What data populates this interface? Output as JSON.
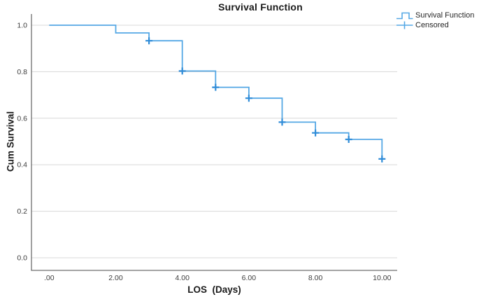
{
  "title": "Survival Function",
  "legend": {
    "position": "top-right",
    "items": [
      {
        "label": "Survival Function",
        "glyph": "step-line"
      },
      {
        "label": "Censored",
        "glyph": "plus-marker"
      }
    ]
  },
  "chart_data": {
    "type": "line",
    "subtype": "kaplan-meier-step",
    "title": "Survival Function",
    "xlabel": "LOS  (Days)",
    "ylabel": "Cum Survival",
    "xlim": [
      -0.55,
      10.45
    ],
    "ylim": [
      0,
      1.0
    ],
    "grid": "horizontal-only",
    "legend_position": "top-right-outside",
    "x_ticks": {
      "values": [
        0,
        2,
        4,
        6,
        8,
        10
      ],
      "labels": [
        ".00",
        "2.00",
        "4.00",
        "6.00",
        "8.00",
        "10.00"
      ]
    },
    "y_ticks": {
      "values": [
        0.0,
        0.2,
        0.4,
        0.6,
        0.8,
        1.0
      ],
      "labels": [
        "0.0",
        "0.2",
        "0.4",
        "0.6",
        "0.8",
        "1.0"
      ]
    },
    "series": [
      {
        "name": "Survival Function",
        "type": "step",
        "points": [
          [
            0,
            1.0
          ],
          [
            2,
            0.967
          ],
          [
            3,
            0.933
          ],
          [
            4,
            0.803
          ],
          [
            5,
            0.733
          ],
          [
            6,
            0.686
          ],
          [
            7,
            0.583
          ],
          [
            8,
            0.537
          ],
          [
            9,
            0.509
          ],
          [
            10,
            0.425
          ]
        ]
      },
      {
        "name": "Censored",
        "type": "scatter-plus",
        "points": [
          [
            3,
            0.933
          ],
          [
            4,
            0.803
          ],
          [
            5,
            0.733
          ],
          [
            6,
            0.686
          ],
          [
            7,
            0.583
          ],
          [
            8,
            0.537
          ],
          [
            9,
            0.509
          ],
          [
            10,
            0.425
          ]
        ]
      }
    ],
    "colors": {
      "line": "#55a8e5",
      "marker": "#2f8cd8",
      "grid": "#d8d8d8",
      "axis": "#6e6e6e",
      "tick_text": "#3d3d3d"
    }
  }
}
